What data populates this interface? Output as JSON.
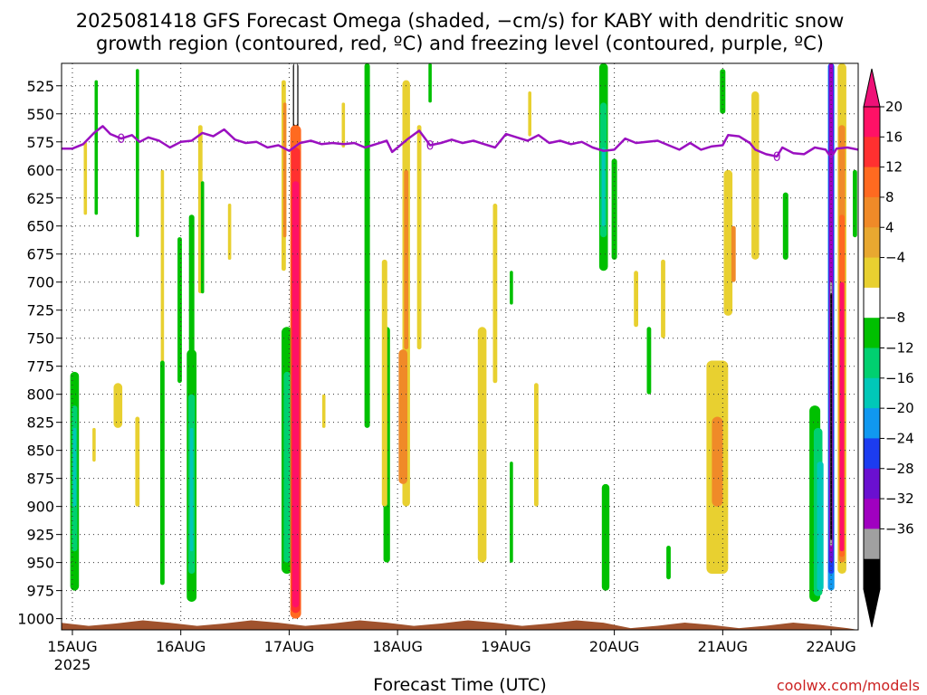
{
  "chart_data": {
    "type": "heatmap",
    "title_lines": [
      "2025081418 GFS Forecast Omega (shaded, −cm/s) for KABY with dendritic snow",
      "growth region (contoured, red, ºC) and freezing level (contoured, purple, ºC)"
    ],
    "xlabel": "Forecast Time (UTC)",
    "credit": "coolwx.com/models",
    "x_axis": {
      "ticks": [
        "15AUG",
        "16AUG",
        "17AUG",
        "18AUG",
        "19AUG",
        "20AUG",
        "21AUG",
        "22AUG"
      ],
      "first_tick_sublabel": "2025",
      "range_days": [
        -0.1,
        7.25
      ]
    },
    "y_axis": {
      "ticks": [
        525,
        550,
        575,
        600,
        625,
        650,
        675,
        700,
        725,
        750,
        775,
        800,
        825,
        850,
        875,
        900,
        925,
        950,
        975,
        1000
      ],
      "range_hpa": [
        505,
        1010
      ],
      "inverted": true
    },
    "grid": true,
    "colorbar": {
      "labels": [
        "20",
        "16",
        "12",
        "8",
        "4",
        "−4",
        "−8",
        "−12",
        "−16",
        "−20",
        "−24",
        "−28",
        "−32",
        "−36"
      ],
      "colors": [
        "#ff1166",
        "#ff3030",
        "#ff6a20",
        "#f08a28",
        "#e8a830",
        "#e8d030",
        "#ffffff",
        "#00c000",
        "#00d070",
        "#00c8b8",
        "#1098f0",
        "#1c3cf0",
        "#6a10d0",
        "#a000c0",
        "#a0a0a0",
        "#000000"
      ],
      "top_color": "#ee1177",
      "bottom_color": "#000000"
    },
    "freezing_level": {
      "label": "0",
      "color": "#9a10c0",
      "points": [
        [
          -0.1,
          581
        ],
        [
          0.0,
          581
        ],
        [
          0.1,
          577
        ],
        [
          0.2,
          567
        ],
        [
          0.28,
          561
        ],
        [
          0.35,
          568
        ],
        [
          0.45,
          572
        ],
        [
          0.55,
          569
        ],
        [
          0.62,
          575
        ],
        [
          0.7,
          571
        ],
        [
          0.8,
          574
        ],
        [
          0.9,
          580
        ],
        [
          1.0,
          575
        ],
        [
          1.1,
          574
        ],
        [
          1.2,
          567
        ],
        [
          1.3,
          570
        ],
        [
          1.4,
          564
        ],
        [
          1.5,
          573
        ],
        [
          1.6,
          576
        ],
        [
          1.7,
          575
        ],
        [
          1.8,
          580
        ],
        [
          1.9,
          578
        ],
        [
          2.0,
          583
        ],
        [
          2.1,
          576
        ],
        [
          2.2,
          574
        ],
        [
          2.3,
          577
        ],
        [
          2.4,
          576
        ],
        [
          2.5,
          577
        ],
        [
          2.6,
          576
        ],
        [
          2.7,
          580
        ],
        [
          2.8,
          577
        ],
        [
          2.9,
          574
        ],
        [
          2.95,
          584
        ],
        [
          3.0,
          580
        ],
        [
          3.1,
          572
        ],
        [
          3.2,
          565
        ],
        [
          3.3,
          578
        ],
        [
          3.4,
          576
        ],
        [
          3.5,
          573
        ],
        [
          3.6,
          576
        ],
        [
          3.7,
          574
        ],
        [
          3.8,
          577
        ],
        [
          3.9,
          580
        ],
        [
          4.0,
          568
        ],
        [
          4.1,
          571
        ],
        [
          4.2,
          574
        ],
        [
          4.3,
          569
        ],
        [
          4.4,
          576
        ],
        [
          4.5,
          574
        ],
        [
          4.6,
          577
        ],
        [
          4.7,
          575
        ],
        [
          4.8,
          580
        ],
        [
          4.9,
          583
        ],
        [
          5.0,
          582
        ],
        [
          5.1,
          572
        ],
        [
          5.2,
          576
        ],
        [
          5.3,
          575
        ],
        [
          5.4,
          574
        ],
        [
          5.5,
          578
        ],
        [
          5.6,
          582
        ],
        [
          5.7,
          576
        ],
        [
          5.8,
          582
        ],
        [
          5.9,
          579
        ],
        [
          6.0,
          578
        ],
        [
          6.05,
          569
        ],
        [
          6.15,
          570
        ],
        [
          6.25,
          576
        ],
        [
          6.3,
          582
        ],
        [
          6.4,
          586
        ],
        [
          6.5,
          588
        ],
        [
          6.55,
          580
        ],
        [
          6.65,
          585
        ],
        [
          6.75,
          586
        ],
        [
          6.85,
          580
        ],
        [
          6.95,
          582
        ],
        [
          7.0,
          589
        ],
        [
          7.05,
          581
        ],
        [
          7.15,
          580
        ],
        [
          7.25,
          582
        ]
      ]
    },
    "omega_features": [
      {
        "t": 0.02,
        "top": 780,
        "bottom": 975,
        "w": 0.08,
        "color": "#00c000"
      },
      {
        "t": 0.02,
        "top": 810,
        "bottom": 940,
        "w": 0.05,
        "color": "#00d070"
      },
      {
        "t": 0.02,
        "top": 830,
        "bottom": 900,
        "w": 0.03,
        "color": "#00c8b8"
      },
      {
        "t": 0.12,
        "top": 575,
        "bottom": 640,
        "w": 0.03,
        "color": "#e8d030"
      },
      {
        "t": 0.22,
        "top": 520,
        "bottom": 640,
        "w": 0.03,
        "color": "#00c000"
      },
      {
        "t": 0.42,
        "top": 790,
        "bottom": 830,
        "w": 0.08,
        "color": "#e8d030"
      },
      {
        "t": 0.6,
        "top": 510,
        "bottom": 660,
        "w": 0.03,
        "color": "#00c000"
      },
      {
        "t": 0.83,
        "top": 600,
        "bottom": 780,
        "w": 0.03,
        "color": "#e8d030"
      },
      {
        "t": 0.99,
        "top": 660,
        "bottom": 790,
        "w": 0.04,
        "color": "#00c000"
      },
      {
        "t": 0.83,
        "top": 770,
        "bottom": 970,
        "w": 0.04,
        "color": "#00c000"
      },
      {
        "t": 1.1,
        "top": 640,
        "bottom": 830,
        "w": 0.05,
        "color": "#00c000"
      },
      {
        "t": 1.1,
        "top": 760,
        "bottom": 985,
        "w": 0.09,
        "color": "#00c000"
      },
      {
        "t": 1.1,
        "top": 800,
        "bottom": 960,
        "w": 0.06,
        "color": "#00d070"
      },
      {
        "t": 1.1,
        "top": 830,
        "bottom": 940,
        "w": 0.03,
        "color": "#00c8b8"
      },
      {
        "t": 1.18,
        "top": 560,
        "bottom": 710,
        "w": 0.04,
        "color": "#e8d030"
      },
      {
        "t": 1.2,
        "top": 610,
        "bottom": 710,
        "w": 0.03,
        "color": "#00c000"
      },
      {
        "t": 1.45,
        "top": 630,
        "bottom": 680,
        "w": 0.03,
        "color": "#e8d030"
      },
      {
        "t": 0.6,
        "top": 820,
        "bottom": 900,
        "w": 0.04,
        "color": "#e8d030"
      },
      {
        "t": 0.2,
        "top": 830,
        "bottom": 860,
        "w": 0.03,
        "color": "#e8d030"
      },
      {
        "t": 1.95,
        "top": 520,
        "bottom": 690,
        "w": 0.04,
        "color": "#e8d030"
      },
      {
        "t": 1.96,
        "top": 540,
        "bottom": 660,
        "w": 0.03,
        "color": "#f08a28"
      },
      {
        "t": 1.98,
        "top": 740,
        "bottom": 960,
        "w": 0.1,
        "color": "#00c000"
      },
      {
        "t": 1.98,
        "top": 780,
        "bottom": 950,
        "w": 0.06,
        "color": "#00d070"
      },
      {
        "t": 2.06,
        "top": 505,
        "bottom": 580,
        "w": 0.05,
        "color": "#000000"
      },
      {
        "t": 2.06,
        "top": 505,
        "bottom": 560,
        "w": 0.03,
        "color": "#ffffff"
      },
      {
        "t": 2.06,
        "top": 560,
        "bottom": 1000,
        "w": 0.1,
        "color": "#ff6a20"
      },
      {
        "t": 2.06,
        "top": 580,
        "bottom": 995,
        "w": 0.08,
        "color": "#ff3030"
      },
      {
        "t": 2.06,
        "top": 610,
        "bottom": 990,
        "w": 0.06,
        "color": "#ff1166"
      },
      {
        "t": 2.32,
        "top": 800,
        "bottom": 830,
        "w": 0.03,
        "color": "#e8d030"
      },
      {
        "t": 2.5,
        "top": 540,
        "bottom": 580,
        "w": 0.03,
        "color": "#e8d030"
      },
      {
        "t": 2.72,
        "top": 500,
        "bottom": 830,
        "w": 0.05,
        "color": "#00c000"
      },
      {
        "t": 2.9,
        "top": 740,
        "bottom": 950,
        "w": 0.06,
        "color": "#00c000"
      },
      {
        "t": 2.88,
        "top": 680,
        "bottom": 900,
        "w": 0.05,
        "color": "#e8d030"
      },
      {
        "t": 3.08,
        "top": 520,
        "bottom": 900,
        "w": 0.07,
        "color": "#e8d030"
      },
      {
        "t": 3.08,
        "top": 600,
        "bottom": 760,
        "w": 0.04,
        "color": "#f08a28"
      },
      {
        "t": 3.05,
        "top": 760,
        "bottom": 880,
        "w": 0.08,
        "color": "#f08a28"
      },
      {
        "t": 3.2,
        "top": 560,
        "bottom": 760,
        "w": 0.04,
        "color": "#e8d030"
      },
      {
        "t": 3.3,
        "top": 500,
        "bottom": 540,
        "w": 0.03,
        "color": "#00c000"
      },
      {
        "t": 3.78,
        "top": 740,
        "bottom": 950,
        "w": 0.08,
        "color": "#e8d030"
      },
      {
        "t": 3.9,
        "top": 630,
        "bottom": 790,
        "w": 0.04,
        "color": "#e8d030"
      },
      {
        "t": 4.05,
        "top": 690,
        "bottom": 720,
        "w": 0.03,
        "color": "#00c000"
      },
      {
        "t": 4.05,
        "top": 860,
        "bottom": 950,
        "w": 0.03,
        "color": "#00c000"
      },
      {
        "t": 4.28,
        "top": 790,
        "bottom": 900,
        "w": 0.04,
        "color": "#e8d030"
      },
      {
        "t": 4.22,
        "top": 530,
        "bottom": 570,
        "w": 0.03,
        "color": "#e8d030"
      },
      {
        "t": 4.9,
        "top": 505,
        "bottom": 690,
        "w": 0.08,
        "color": "#00c000"
      },
      {
        "t": 4.9,
        "top": 540,
        "bottom": 660,
        "w": 0.06,
        "color": "#00d070"
      },
      {
        "t": 4.9,
        "top": 580,
        "bottom": 650,
        "w": 0.03,
        "color": "#00c8b8"
      },
      {
        "t": 5.0,
        "top": 590,
        "bottom": 680,
        "w": 0.05,
        "color": "#00c000"
      },
      {
        "t": 4.92,
        "top": 880,
        "bottom": 975,
        "w": 0.07,
        "color": "#00c000"
      },
      {
        "t": 5.2,
        "top": 690,
        "bottom": 740,
        "w": 0.04,
        "color": "#e8d030"
      },
      {
        "t": 5.32,
        "top": 740,
        "bottom": 800,
        "w": 0.04,
        "color": "#00c000"
      },
      {
        "t": 5.45,
        "top": 680,
        "bottom": 750,
        "w": 0.04,
        "color": "#e8d030"
      },
      {
        "t": 5.5,
        "top": 935,
        "bottom": 965,
        "w": 0.04,
        "color": "#00c000"
      },
      {
        "t": 5.95,
        "top": 770,
        "bottom": 960,
        "w": 0.2,
        "color": "#e8d030"
      },
      {
        "t": 5.95,
        "top": 820,
        "bottom": 900,
        "w": 0.1,
        "color": "#f08a28"
      },
      {
        "t": 6.05,
        "top": 600,
        "bottom": 730,
        "w": 0.08,
        "color": "#e8d030"
      },
      {
        "t": 6.1,
        "top": 650,
        "bottom": 700,
        "w": 0.04,
        "color": "#f08a28"
      },
      {
        "t": 6.3,
        "top": 530,
        "bottom": 680,
        "w": 0.07,
        "color": "#e8d030"
      },
      {
        "t": 6.0,
        "top": 510,
        "bottom": 550,
        "w": 0.05,
        "color": "#00c000"
      },
      {
        "t": 6.58,
        "top": 620,
        "bottom": 680,
        "w": 0.05,
        "color": "#00c000"
      },
      {
        "t": 6.85,
        "top": 810,
        "bottom": 985,
        "w": 0.1,
        "color": "#00c000"
      },
      {
        "t": 6.88,
        "top": 830,
        "bottom": 980,
        "w": 0.08,
        "color": "#00d070"
      },
      {
        "t": 6.9,
        "top": 860,
        "bottom": 975,
        "w": 0.06,
        "color": "#00c8b8"
      },
      {
        "t": 7.0,
        "top": 505,
        "bottom": 975,
        "w": 0.06,
        "color": "#1098f0"
      },
      {
        "t": 7.0,
        "top": 505,
        "bottom": 960,
        "w": 0.05,
        "color": "#1c3cf0"
      },
      {
        "t": 7.0,
        "top": 505,
        "bottom": 950,
        "w": 0.04,
        "color": "#6a10d0"
      },
      {
        "t": 7.0,
        "top": 505,
        "bottom": 940,
        "w": 0.03,
        "color": "#a000c0"
      },
      {
        "t": 7.0,
        "top": 700,
        "bottom": 935,
        "w": 0.02,
        "color": "#a0a0a0"
      },
      {
        "t": 7.0,
        "top": 710,
        "bottom": 930,
        "w": 0.015,
        "color": "#000000"
      },
      {
        "t": 7.1,
        "top": 505,
        "bottom": 960,
        "w": 0.08,
        "color": "#e8d030"
      },
      {
        "t": 7.1,
        "top": 560,
        "bottom": 950,
        "w": 0.06,
        "color": "#f08a28"
      },
      {
        "t": 7.1,
        "top": 640,
        "bottom": 945,
        "w": 0.05,
        "color": "#ff6a20"
      },
      {
        "t": 7.1,
        "top": 700,
        "bottom": 940,
        "w": 0.04,
        "color": "#ff1166"
      },
      {
        "t": 7.22,
        "top": 600,
        "bottom": 660,
        "w": 0.04,
        "color": "#00c000"
      }
    ],
    "terrain_color": "#a0522d"
  }
}
